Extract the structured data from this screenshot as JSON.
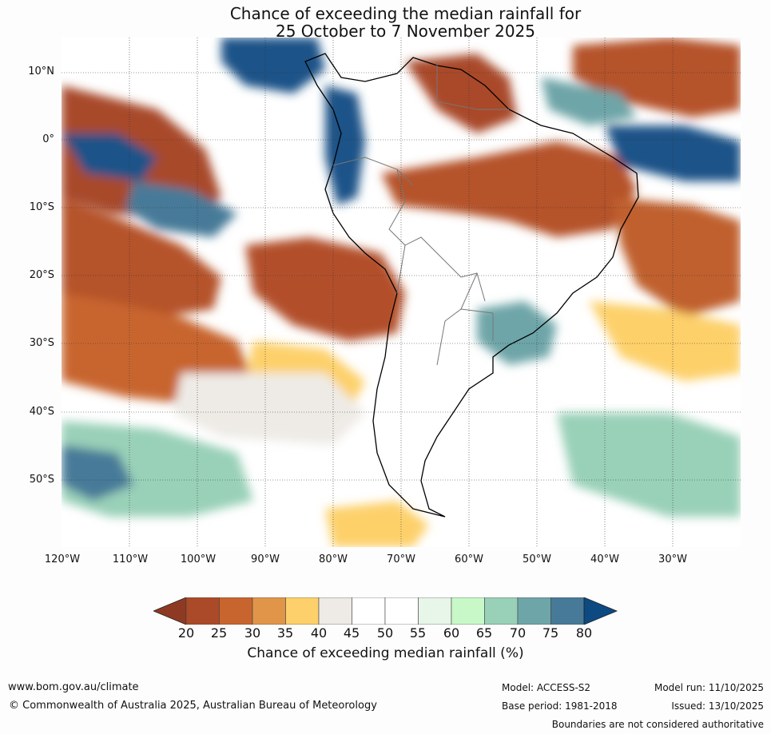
{
  "title_line1": "Chance of exceeding the median rainfall for",
  "title_line2": "25 October to 7 November 2025",
  "lat_labels": [
    "10°N",
    "0°",
    "10°S",
    "20°S",
    "30°S",
    "40°S",
    "50°S"
  ],
  "lon_labels": [
    "120°W",
    "110°W",
    "100°W",
    "90°W",
    "80°W",
    "70°W",
    "60°W",
    "50°W",
    "40°W",
    "30°W"
  ],
  "colorbar": {
    "ticks": [
      "20",
      "25",
      "30",
      "35",
      "40",
      "45",
      "50",
      "55",
      "60",
      "65",
      "70",
      "75",
      "80"
    ],
    "colors": [
      "#8e3a22",
      "#ab4a28",
      "#c8652f",
      "#e09548",
      "#fdd06b",
      "#eeebe6",
      "#ffffff",
      "#ffffff",
      "#e8f5e9",
      "#c8f8c8",
      "#99d0b8",
      "#6ea5a8",
      "#467a98",
      "#0d4a82"
    ],
    "title": "Chance of exceeding median rainfall (%)"
  },
  "footer": {
    "website": "www.bom.gov.au/climate",
    "copyright": "© Commonwealth of Australia 2025, Australian Bureau of Meteorology",
    "model": "Model: ACCESS-S2",
    "base_period": "Base period: 1981-2018",
    "model_run": "Model run: 11/10/2025",
    "issued": "Issued: 13/10/2025",
    "disclaimer": "Boundaries are not considered authoritative"
  }
}
